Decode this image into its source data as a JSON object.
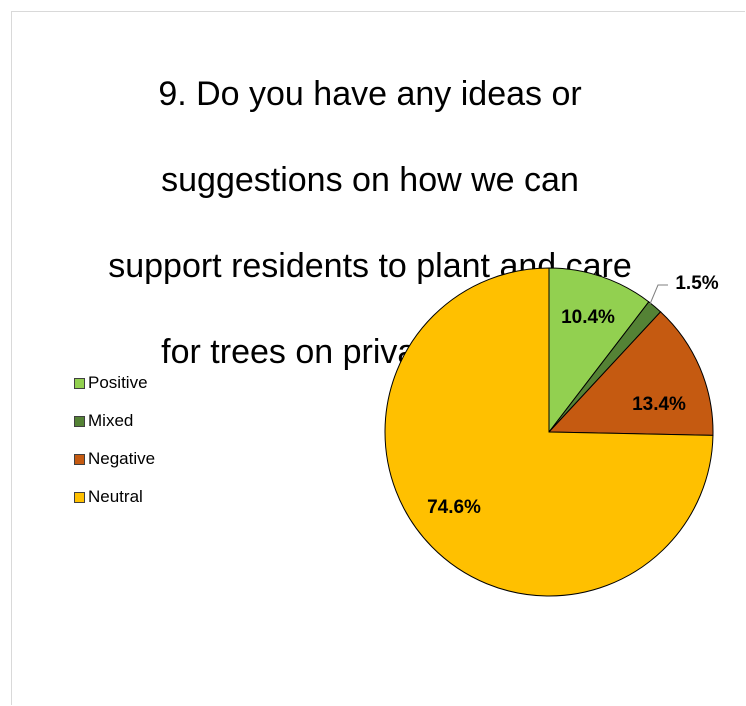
{
  "chart_data": {
    "type": "pie",
    "title": "9. Do you have any ideas or suggestions on how we can support residents to plant and care for trees on private property",
    "title_lines": [
      "9. Do you have any ideas or",
      "suggestions on how we can",
      "support residents to plant and care",
      "for trees on private property"
    ],
    "categories": [
      "Positive",
      "Mixed",
      "Negative",
      "Neutral"
    ],
    "values": [
      10.4,
      1.5,
      13.4,
      74.6
    ],
    "labels": [
      "10.4%",
      "1.5%",
      "13.4%",
      "74.6%"
    ],
    "colors": [
      "#92d050",
      "#548235",
      "#c55a11",
      "#ffc000"
    ],
    "legend_position": "left"
  }
}
